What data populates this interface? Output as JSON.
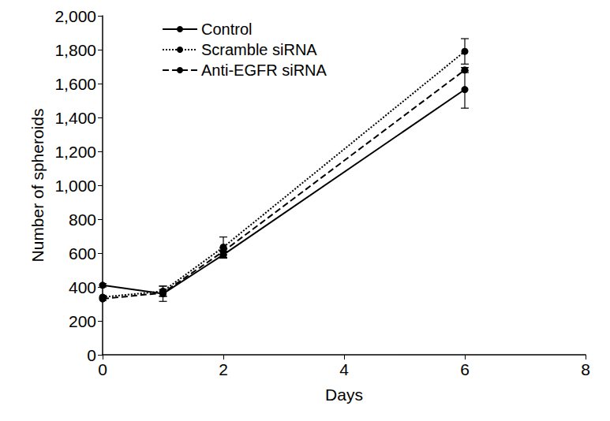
{
  "chart_data": {
    "type": "line",
    "x_label": "Days",
    "y_label": "Number of spheroids",
    "xlim": [
      0,
      8
    ],
    "xticks": [
      0,
      2,
      4,
      6,
      8
    ],
    "ylim": [
      0,
      2000
    ],
    "yticks": [
      0,
      200,
      400,
      600,
      800,
      1000,
      1200,
      1400,
      1600,
      1800,
      2000
    ],
    "grid": false,
    "legend": "upper left",
    "series": [
      {
        "name": "Control",
        "color": "#000000",
        "line_style": "solid",
        "marker": "circle",
        "x": [
          0,
          1,
          2,
          6
        ],
        "values": [
          410,
          360,
          590,
          1565
        ],
        "errors": [
          10,
          45,
          20,
          110
        ]
      },
      {
        "name": "Scramble siRNA",
        "color": "#000000",
        "line_style": "dotted",
        "marker": "circle",
        "x": [
          0,
          1,
          2,
          6
        ],
        "values": [
          340,
          375,
          635,
          1790
        ],
        "errors": [
          10,
          30,
          60,
          75
        ]
      },
      {
        "name": "Anti-EGFR siRNA",
        "color": "#000000",
        "line_style": "dashed",
        "marker": "circle",
        "x": [
          0,
          1,
          2,
          6
        ],
        "values": [
          330,
          365,
          610,
          1680
        ],
        "errors": [
          10,
          20,
          20,
          15
        ]
      }
    ]
  }
}
